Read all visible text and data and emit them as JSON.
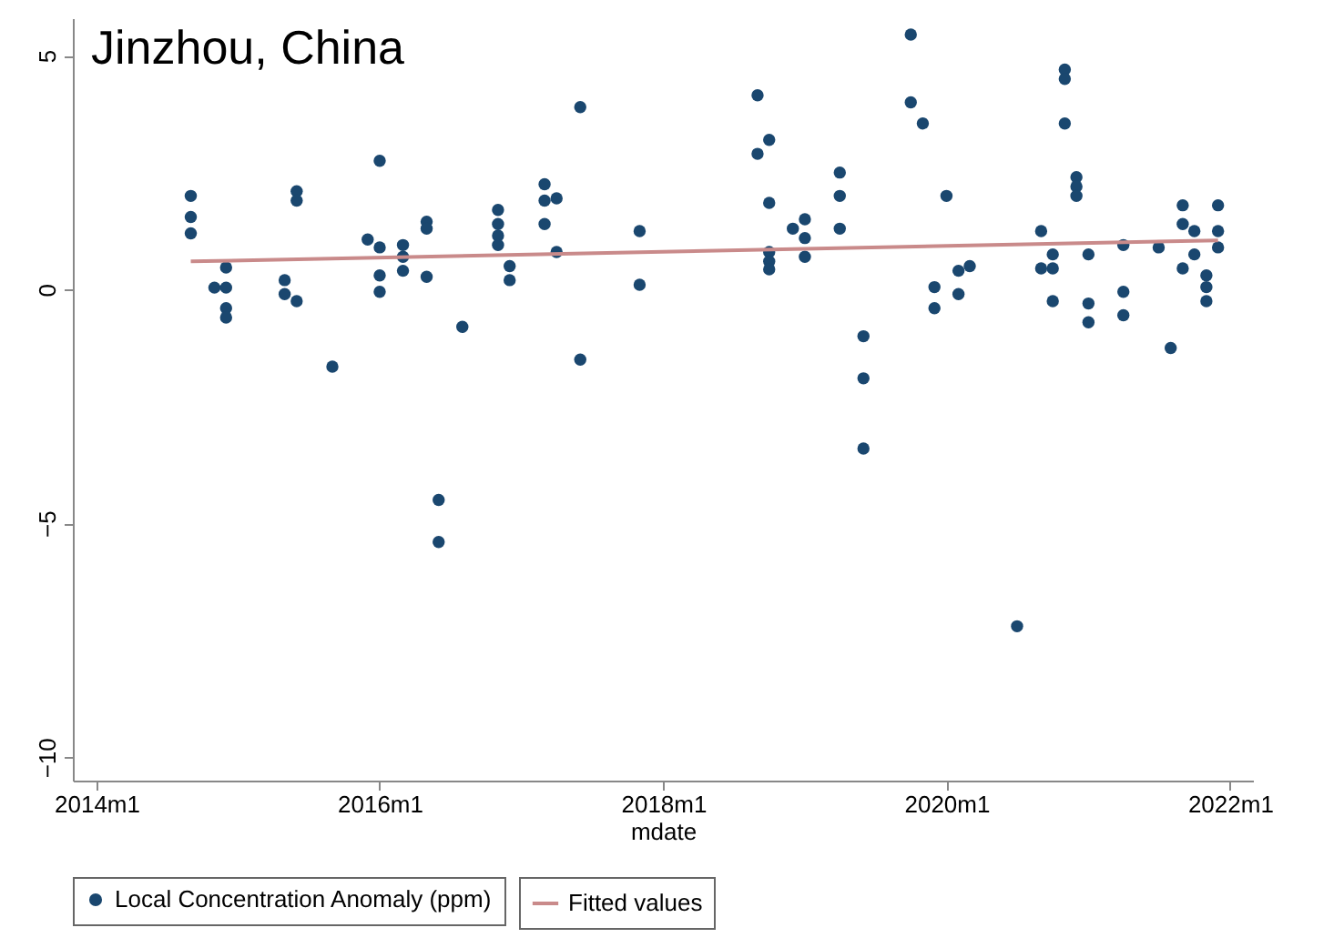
{
  "chart_data": {
    "type": "scatter",
    "title": "Jinzhou, China",
    "xlabel": "mdate",
    "xlim": [
      "2013-11",
      "2022-03"
    ],
    "ylim": [
      -10.5,
      5.8
    ],
    "xticks": [
      {
        "value": "2014-01",
        "label": "2014m1"
      },
      {
        "value": "2016-01",
        "label": "2016m1"
      },
      {
        "value": "2018-01",
        "label": "2018m1"
      },
      {
        "value": "2020-01",
        "label": "2020m1"
      },
      {
        "value": "2022-01",
        "label": "2022m1"
      }
    ],
    "yticks": [
      5,
      0,
      -5,
      -10
    ],
    "grid": false,
    "legend": "bottom",
    "series": [
      {
        "name": "Local Concentration Anomaly (ppm)",
        "type": "scatter",
        "marker": "circle",
        "color": "#1a476f",
        "x": [
          "2014-09",
          "2014-09",
          "2014-09",
          "2014-12",
          "2014-11",
          "2014-12",
          "2014-12",
          "2014-12",
          "2015-05",
          "2015-05",
          "2015-06",
          "2015-06",
          "2015-06",
          "2015-09",
          "2016-01",
          "2015-12",
          "2016-01",
          "2016-01",
          "2016-01",
          "2016-03",
          "2016-03",
          "2016-03",
          "2016-05",
          "2016-05",
          "2016-05",
          "2016-06",
          "2016-06",
          "2016-08",
          "2016-11",
          "2016-11",
          "2016-11",
          "2016-11",
          "2016-12",
          "2016-12",
          "2017-03",
          "2017-03",
          "2017-04",
          "2017-03",
          "2017-04",
          "2017-06",
          "2017-06",
          "2017-11",
          "2017-11",
          "2018-09",
          "2018-09",
          "2018-10",
          "2018-10",
          "2018-10",
          "2018-10",
          "2018-10",
          "2018-12",
          "2019-01",
          "2019-01",
          "2019-01",
          "2019-04",
          "2019-04",
          "2019-04",
          "2019-06",
          "2019-06",
          "2019-06",
          "2019-10",
          "2019-10",
          "2019-11",
          "2020-01",
          "2019-12",
          "2019-12",
          "2020-02",
          "2020-02",
          "2020-03",
          "2020-07",
          "2020-09",
          "2020-09",
          "2020-10",
          "2020-10",
          "2020-10",
          "2020-11",
          "2020-11",
          "2020-11",
          "2020-12",
          "2020-12",
          "2020-12",
          "2021-01",
          "2021-01",
          "2021-01",
          "2021-04",
          "2021-04",
          "2021-04",
          "2021-07",
          "2021-08",
          "2021-09",
          "2021-09",
          "2021-09",
          "2021-10",
          "2021-10",
          "2021-11",
          "2021-11",
          "2021-11",
          "2021-12",
          "2021-12",
          "2021-12"
        ],
        "values": [
          2.0,
          1.55,
          1.2,
          0.47,
          0.04,
          0.04,
          -0.4,
          -0.6,
          0.2,
          -0.1,
          -0.25,
          2.1,
          1.9,
          -1.65,
          2.75,
          1.07,
          0.9,
          0.3,
          -0.05,
          0.95,
          0.7,
          0.4,
          1.45,
          1.3,
          0.27,
          -4.5,
          -5.4,
          -0.8,
          1.7,
          1.4,
          1.15,
          0.95,
          0.5,
          0.2,
          2.25,
          1.9,
          1.95,
          1.4,
          0.8,
          3.9,
          -1.5,
          1.25,
          0.1,
          4.15,
          2.9,
          3.2,
          1.85,
          0.8,
          0.6,
          0.43,
          1.3,
          1.5,
          1.1,
          0.7,
          2.5,
          2.0,
          1.3,
          -1.0,
          -1.9,
          -3.4,
          5.45,
          4.0,
          3.55,
          2.0,
          0.05,
          -0.4,
          0.4,
          -0.1,
          0.5,
          -7.2,
          1.25,
          0.45,
          0.45,
          0.75,
          -0.25,
          4.7,
          4.5,
          3.55,
          2.4,
          2.2,
          2.0,
          0.75,
          -0.3,
          -0.7,
          0.95,
          -0.05,
          -0.55,
          0.9,
          -1.25,
          1.8,
          1.4,
          0.45,
          1.25,
          0.75,
          0.3,
          0.05,
          -0.25,
          1.8,
          1.25,
          0.9
        ]
      },
      {
        "name": "Fitted values",
        "type": "line",
        "line_style": "solid",
        "color": "#c98a8a",
        "x": [
          "2014-09",
          "2021-12"
        ],
        "values": [
          0.6,
          1.05
        ]
      }
    ]
  }
}
